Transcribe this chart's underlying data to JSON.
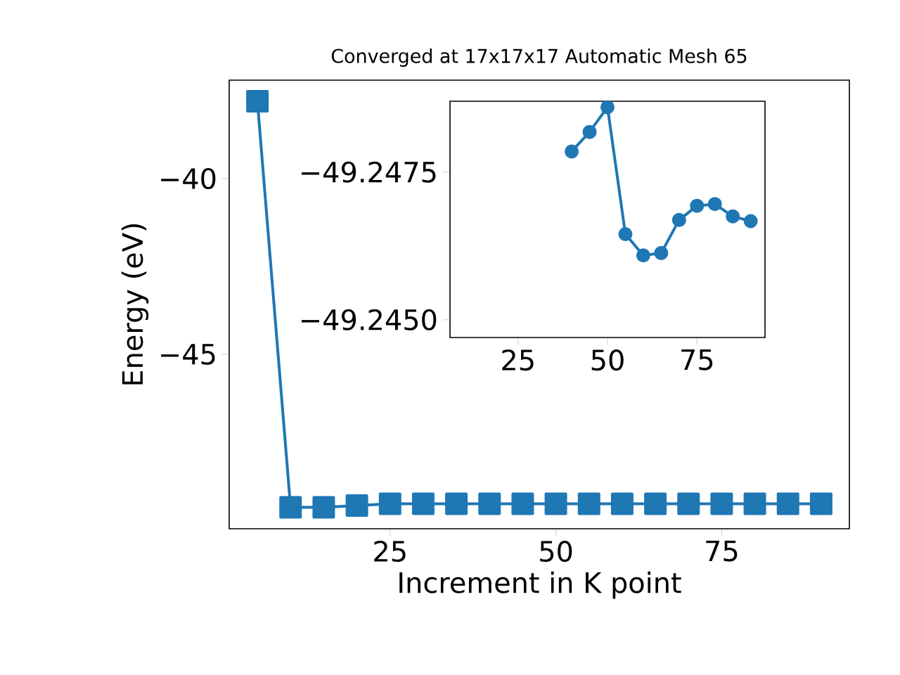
{
  "chart_data": [
    {
      "type": "line",
      "title": "Converged at 17x17x17 Automatic Mesh 65",
      "xlabel": "Increment in K point",
      "ylabel": "Energy (eV)",
      "x": [
        5,
        10,
        15,
        20,
        25,
        30,
        35,
        40,
        45,
        50,
        55,
        60,
        65,
        70,
        75,
        80,
        85,
        90
      ],
      "values": [
        -37.8,
        -49.35,
        -49.35,
        -49.3,
        -49.25,
        -49.25,
        -49.25,
        -49.25,
        -49.25,
        -49.25,
        -49.25,
        -49.25,
        -49.25,
        -49.25,
        -49.25,
        -49.25,
        -49.25,
        -49.25
      ],
      "color": "#1f77b4",
      "marker": "square",
      "xlim": [
        0.75,
        94.25
      ],
      "ylim": [
        -49.96,
        -37.2
      ],
      "xticks": [
        25,
        50,
        75
      ],
      "yticks": [
        {
          "value": -40,
          "label": "−40"
        },
        {
          "value": -45,
          "label": "−45"
        }
      ]
    },
    {
      "type": "line",
      "x": [
        40,
        45,
        50,
        55,
        60,
        65,
        70,
        75,
        80,
        85,
        90
      ],
      "values": [
        -49.24785,
        -49.24818,
        -49.2486,
        -49.24645,
        -49.24609,
        -49.24613,
        -49.24669,
        -49.24693,
        -49.24696,
        -49.24675,
        -49.24667
      ],
      "color": "#1f77b4",
      "marker": "circle",
      "xlim": [
        6,
        94
      ],
      "ylim": [
        -49.2447,
        -49.2487
      ],
      "xticks": [
        25,
        50,
        75
      ],
      "yticks": [
        {
          "value": -49.2475,
          "label": "−49.2475"
        },
        {
          "value": -49.245,
          "label": "−49.2450"
        }
      ]
    }
  ]
}
